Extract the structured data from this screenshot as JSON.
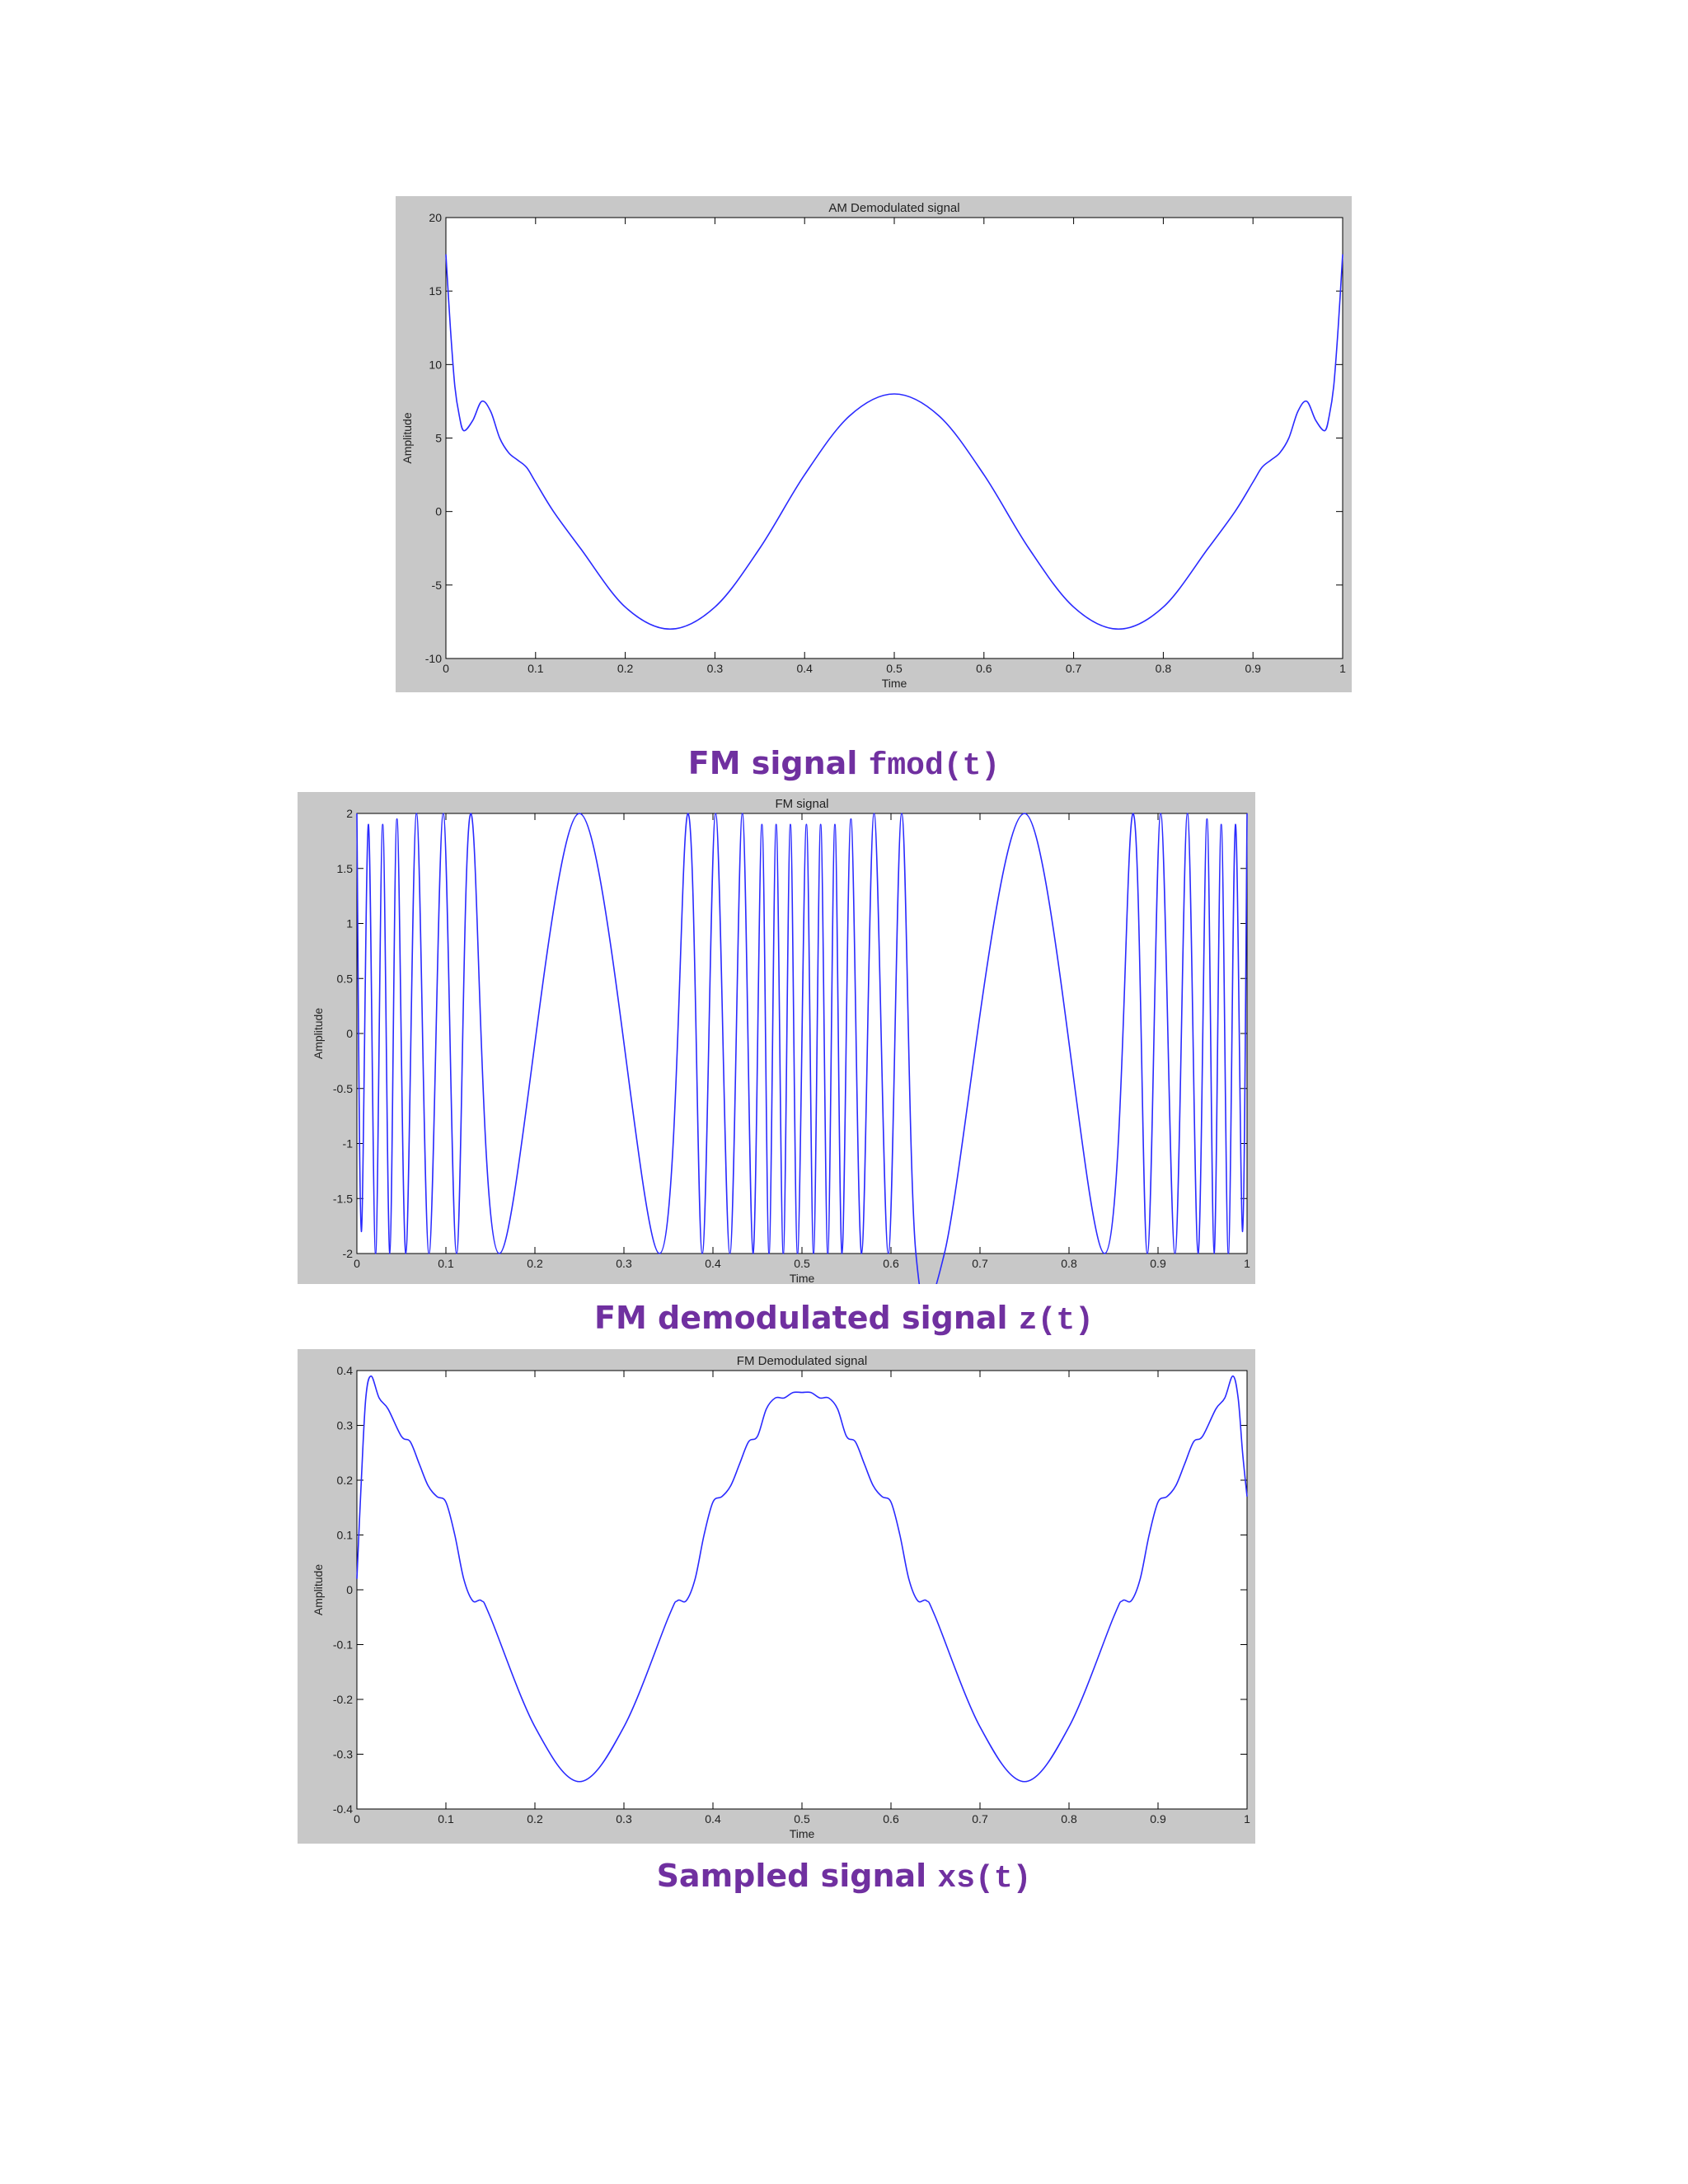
{
  "chart_data": [
    {
      "type": "line",
      "title": "AM Demodulated signal",
      "xlabel": "Time",
      "ylabel": "Amplitude",
      "xlim": [
        0,
        1
      ],
      "ylim": [
        -10,
        20
      ],
      "xticks": [
        "0",
        "0.1",
        "0.2",
        "0.3",
        "0.4",
        "0.5",
        "0.6",
        "0.7",
        "0.8",
        "0.9",
        "1"
      ],
      "yticks": [
        "-10",
        "-5",
        "0",
        "5",
        "10",
        "15",
        "20"
      ],
      "xtick_values": [
        0,
        0.1,
        0.2,
        0.3,
        0.4,
        0.5,
        0.6,
        0.7,
        0.8,
        0.9,
        1
      ],
      "ytick_values": [
        -10,
        -5,
        0,
        5,
        10,
        15,
        20
      ],
      "grid": false,
      "line_color": "#2a2aff",
      "series": [
        {
          "x": [
            0,
            0.005,
            0.01,
            0.015,
            0.02,
            0.03,
            0.04,
            0.05,
            0.06,
            0.07,
            0.08,
            0.09,
            0.1,
            0.12,
            0.15,
            0.2,
            0.25,
            0.3,
            0.35,
            0.4,
            0.45,
            0.5,
            0.55,
            0.6,
            0.65,
            0.7,
            0.75,
            0.8,
            0.85,
            0.88,
            0.9,
            0.91,
            0.92,
            0.93,
            0.94,
            0.95,
            0.96,
            0.97,
            0.98,
            0.985,
            0.99,
            0.995,
            1
          ],
          "y": [
            17.5,
            12.5,
            8.5,
            6.5,
            5.5,
            6.2,
            7.5,
            6.8,
            5,
            4,
            3.5,
            3,
            2,
            0,
            -2.5,
            -6.5,
            -8,
            -6.5,
            -2.5,
            2.5,
            6.5,
            8,
            6.5,
            2.5,
            -2.5,
            -6.5,
            -8,
            -6.5,
            -2.5,
            0,
            2,
            3,
            3.5,
            4,
            5,
            6.8,
            7.5,
            6.2,
            5.5,
            6.5,
            8.5,
            12.5,
            17.5
          ]
        }
      ]
    },
    {
      "type": "line",
      "title": "FM signal",
      "xlabel": "Time",
      "ylabel": "Amplitude",
      "xlim": [
        0,
        1
      ],
      "ylim": [
        -2,
        2
      ],
      "xticks": [
        "0",
        "0.1",
        "0.2",
        "0.3",
        "0.4",
        "0.5",
        "0.6",
        "0.7",
        "0.8",
        "0.9",
        "1"
      ],
      "yticks": [
        "-2",
        "-1.5",
        "-1",
        "-0.5",
        "0",
        "0.5",
        "1",
        "1.5",
        "2"
      ],
      "xtick_values": [
        0,
        0.1,
        0.2,
        0.3,
        0.4,
        0.5,
        0.6,
        0.7,
        0.8,
        0.9,
        1
      ],
      "ytick_values": [
        -2,
        -1.5,
        -1,
        -0.5,
        0,
        0.5,
        1,
        1.5,
        2
      ],
      "grid": false,
      "line_color": "#2a2aff",
      "series": [
        {
          "x": [
            0,
            0.005,
            0.013,
            0.021,
            0.029,
            0.037,
            0.045,
            0.055,
            0.067,
            0.081,
            0.097,
            0.112,
            0.128,
            0.16,
            0.25,
            0.34,
            0.372,
            0.388,
            0.403,
            0.419,
            0.433,
            0.445,
            0.455,
            0.463,
            0.471,
            0.479,
            0.487,
            0.495,
            0.505,
            0.513,
            0.521,
            0.529,
            0.537,
            0.545,
            0.555,
            0.567,
            0.581,
            0.597,
            0.612,
            0.628,
            0.66,
            0.75,
            0.84,
            0.872,
            0.888,
            0.903,
            0.919,
            0.933,
            0.945,
            0.955,
            0.963,
            0.971,
            0.979,
            0.987,
            0.995,
            1
          ],
          "y": [
            2,
            -1.8,
            1.9,
            -2,
            1.9,
            -2,
            1.95,
            -2,
            2,
            -2,
            2,
            -2,
            2,
            -2,
            2,
            -2,
            2,
            -2,
            2,
            -2,
            2,
            -2,
            1.9,
            -2,
            1.9,
            -2,
            1.9,
            -2,
            1.9,
            -2,
            1.9,
            -2,
            1.9,
            -2,
            1.95,
            -2,
            2,
            -2,
            2,
            -2,
            -2,
            2,
            -2,
            2,
            -2,
            2,
            -2,
            2,
            -2,
            1.95,
            -2,
            1.9,
            -2,
            1.9,
            -1.8,
            2
          ]
        }
      ]
    },
    {
      "type": "line",
      "title": "FM Demodulated signal",
      "xlabel": "Time",
      "ylabel": "Amplitude",
      "xlim": [
        0,
        1
      ],
      "ylim": [
        -0.4,
        0.4
      ],
      "xticks": [
        "0",
        "0.1",
        "0.2",
        "0.3",
        "0.4",
        "0.5",
        "0.6",
        "0.7",
        "0.8",
        "0.9",
        "1"
      ],
      "yticks": [
        "-0.4",
        "-0.3",
        "-0.2",
        "-0.1",
        "0",
        "0.1",
        "0.2",
        "0.3",
        "0.4"
      ],
      "xtick_values": [
        0,
        0.1,
        0.2,
        0.3,
        0.4,
        0.5,
        0.6,
        0.7,
        0.8,
        0.9,
        1
      ],
      "ytick_values": [
        -0.4,
        -0.3,
        -0.2,
        -0.1,
        0,
        0.1,
        0.2,
        0.3,
        0.4
      ],
      "grid": false,
      "line_color": "#2a2aff",
      "series": [
        {
          "x": [
            0,
            0.005,
            0.01,
            0.016,
            0.025,
            0.035,
            0.05,
            0.06,
            0.07,
            0.08,
            0.09,
            0.1,
            0.11,
            0.12,
            0.13,
            0.14,
            0.15,
            0.2,
            0.25,
            0.3,
            0.35,
            0.36,
            0.37,
            0.38,
            0.39,
            0.4,
            0.41,
            0.42,
            0.43,
            0.44,
            0.45,
            0.46,
            0.47,
            0.48,
            0.49,
            0.5,
            0.51,
            0.52,
            0.53,
            0.54,
            0.55,
            0.56,
            0.57,
            0.58,
            0.59,
            0.6,
            0.61,
            0.62,
            0.63,
            0.64,
            0.65,
            0.7,
            0.75,
            0.8,
            0.85,
            0.86,
            0.87,
            0.88,
            0.89,
            0.9,
            0.91,
            0.92,
            0.93,
            0.94,
            0.95,
            0.965,
            0.975,
            0.984,
            0.99,
            0.995,
            1
          ],
          "y": [
            0.02,
            0.2,
            0.35,
            0.39,
            0.35,
            0.33,
            0.28,
            0.27,
            0.23,
            0.19,
            0.17,
            0.16,
            0.1,
            0.02,
            -0.02,
            -0.02,
            -0.05,
            -0.25,
            -0.35,
            -0.25,
            -0.05,
            -0.02,
            -0.02,
            0.02,
            0.1,
            0.16,
            0.17,
            0.19,
            0.23,
            0.27,
            0.28,
            0.33,
            0.35,
            0.35,
            0.36,
            0.36,
            0.36,
            0.35,
            0.35,
            0.33,
            0.28,
            0.27,
            0.23,
            0.19,
            0.17,
            0.16,
            0.1,
            0.02,
            -0.02,
            -0.02,
            -0.05,
            -0.25,
            -0.35,
            -0.25,
            -0.05,
            -0.02,
            -0.02,
            0.02,
            0.1,
            0.16,
            0.17,
            0.19,
            0.23,
            0.27,
            0.28,
            0.33,
            0.35,
            0.39,
            0.35,
            0.25,
            0.17
          ]
        }
      ]
    }
  ],
  "captions": [
    {
      "text": "FM signal ",
      "code": "fmod(t)"
    },
    {
      "text": "FM demodulated signal ",
      "code": "z(t)"
    },
    {
      "text": "Sampled signal ",
      "code": "xs(t)"
    }
  ]
}
